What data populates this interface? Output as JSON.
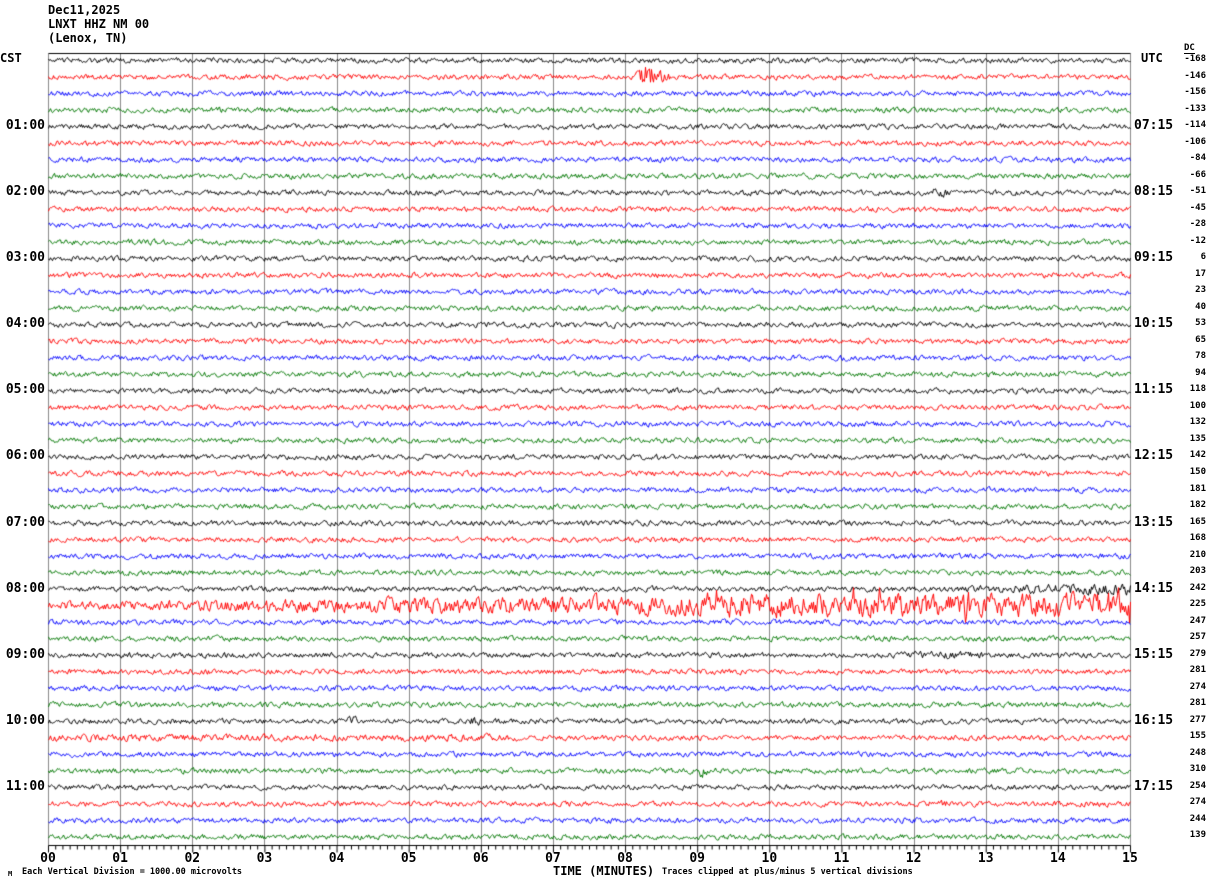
{
  "header": {
    "date": "Dec11,2025",
    "station": "LNXT HHZ NM 00",
    "location": "(Lenox, TN)"
  },
  "axis": {
    "left_header": "CST",
    "right_header": "UTC",
    "dc_header": "DC",
    "x_title": "TIME (MINUTES)",
    "x_ticks": [
      "00",
      "01",
      "02",
      "03",
      "04",
      "05",
      "06",
      "07",
      "08",
      "09",
      "10",
      "11",
      "12",
      "13",
      "14",
      "15"
    ]
  },
  "footer": {
    "left": "Each Vertical Division = 1000.00 microvolts",
    "right": "Traces clipped at plus/minus 5 vertical divisions",
    "corner_mark": "M"
  },
  "colors": {
    "black": "#000000",
    "red": "#ff0000",
    "blue": "#0000ff",
    "green": "#007700",
    "grid": "#888888",
    "axis": "#000000",
    "background": "#ffffff"
  },
  "chart_data": {
    "type": "line",
    "title": "LNXT HHZ NM 00 (Lenox, TN) Dec11,2025 helicorder",
    "xlabel": "TIME (MINUTES)",
    "x_range_minutes": [
      0,
      15
    ],
    "minor_tick_minutes": 0.1,
    "trace_color_cycle": [
      "black",
      "red",
      "blue",
      "green"
    ],
    "clip_note": "Traces clipped at plus/minus 5 vertical divisions",
    "vertical_division_microvolts": 1000.0,
    "rows": [
      {
        "cst": "",
        "utc": "",
        "dc": -168,
        "color": "black"
      },
      {
        "cst": "",
        "utc": "",
        "dc": -146,
        "color": "red",
        "events": [
          {
            "shape": "spike",
            "t0": 8.1,
            "peak": 8.3,
            "t1": 9.5,
            "env": 26,
            "decay": 0.25
          }
        ]
      },
      {
        "cst": "",
        "utc": "",
        "dc": -156,
        "color": "blue"
      },
      {
        "cst": "",
        "utc": "",
        "dc": -133,
        "color": "green"
      },
      {
        "cst": "01:00",
        "utc": "07:15",
        "dc": -114,
        "color": "black"
      },
      {
        "cst": "",
        "utc": "",
        "dc": -106,
        "color": "red"
      },
      {
        "cst": "",
        "utc": "",
        "dc": -84,
        "color": "blue"
      },
      {
        "cst": "",
        "utc": "",
        "dc": -66,
        "color": "green"
      },
      {
        "cst": "02:00",
        "utc": "08:15",
        "dc": -51,
        "color": "black",
        "events": [
          {
            "shape": "flat",
            "t0": 12.25,
            "t1": 12.45,
            "env": 7
          }
        ]
      },
      {
        "cst": "",
        "utc": "",
        "dc": -45,
        "color": "red"
      },
      {
        "cst": "",
        "utc": "",
        "dc": -28,
        "color": "blue"
      },
      {
        "cst": "",
        "utc": "",
        "dc": -12,
        "color": "green"
      },
      {
        "cst": "03:00",
        "utc": "09:15",
        "dc": 6,
        "color": "black"
      },
      {
        "cst": "",
        "utc": "",
        "dc": 17,
        "color": "red"
      },
      {
        "cst": "",
        "utc": "",
        "dc": 23,
        "color": "blue"
      },
      {
        "cst": "",
        "utc": "",
        "dc": 40,
        "color": "green"
      },
      {
        "cst": "04:00",
        "utc": "10:15",
        "dc": 53,
        "color": "black"
      },
      {
        "cst": "",
        "utc": "",
        "dc": 65,
        "color": "red"
      },
      {
        "cst": "",
        "utc": "",
        "dc": 78,
        "color": "blue"
      },
      {
        "cst": "",
        "utc": "",
        "dc": 94,
        "color": "green"
      },
      {
        "cst": "05:00",
        "utc": "11:15",
        "dc": 118,
        "color": "black"
      },
      {
        "cst": "",
        "utc": "",
        "dc": 100,
        "color": "red"
      },
      {
        "cst": "",
        "utc": "",
        "dc": 132,
        "color": "blue"
      },
      {
        "cst": "",
        "utc": "",
        "dc": 135,
        "color": "green"
      },
      {
        "cst": "06:00",
        "utc": "12:15",
        "dc": 142,
        "color": "black"
      },
      {
        "cst": "",
        "utc": "",
        "dc": 150,
        "color": "red"
      },
      {
        "cst": "",
        "utc": "",
        "dc": 181,
        "color": "blue"
      },
      {
        "cst": "",
        "utc": "",
        "dc": 182,
        "color": "green"
      },
      {
        "cst": "07:00",
        "utc": "13:15",
        "dc": 165,
        "color": "black"
      },
      {
        "cst": "",
        "utc": "",
        "dc": 168,
        "color": "red"
      },
      {
        "cst": "",
        "utc": "",
        "dc": 210,
        "color": "blue"
      },
      {
        "cst": "",
        "utc": "",
        "dc": 203,
        "color": "green"
      },
      {
        "cst": "08:00",
        "utc": "14:15",
        "dc": 242,
        "color": "black",
        "events": [
          {
            "shape": "ramp",
            "t0": 12.3,
            "t1": 15,
            "env0": 4,
            "env1": 10
          }
        ]
      },
      {
        "cst": "",
        "utc": "",
        "dc": 225,
        "color": "red",
        "base_env": 6,
        "events": [
          {
            "shape": "ramp",
            "t0": 0,
            "t1": 9,
            "env0": 6,
            "env1": 16
          },
          {
            "shape": "flat",
            "t0": 9,
            "t1": 15,
            "env": 17,
            "spiky": true
          }
        ]
      },
      {
        "cst": "",
        "utc": "",
        "dc": 247,
        "color": "blue"
      },
      {
        "cst": "",
        "utc": "",
        "dc": 257,
        "color": "green"
      },
      {
        "cst": "09:00",
        "utc": "15:15",
        "dc": 279,
        "color": "black",
        "events": [
          {
            "shape": "flat",
            "t0": 11.8,
            "t1": 13,
            "env": 5.5
          }
        ]
      },
      {
        "cst": "",
        "utc": "",
        "dc": 281,
        "color": "red"
      },
      {
        "cst": "",
        "utc": "",
        "dc": 274,
        "color": "blue"
      },
      {
        "cst": "",
        "utc": "",
        "dc": 281,
        "color": "green"
      },
      {
        "cst": "10:00",
        "utc": "16:15",
        "dc": 277,
        "color": "black",
        "events": [
          {
            "shape": "flat",
            "t0": 4.1,
            "t1": 4.35,
            "env": 8
          },
          {
            "shape": "flat",
            "t0": 5.8,
            "t1": 6.0,
            "env": 7
          }
        ]
      },
      {
        "cst": "",
        "utc": "",
        "dc": 155,
        "color": "red",
        "events": [
          {
            "shape": "flat",
            "t0": 0,
            "t1": 6.5,
            "env": 5.5
          }
        ]
      },
      {
        "cst": "",
        "utc": "",
        "dc": 248,
        "color": "blue"
      },
      {
        "cst": "",
        "utc": "",
        "dc": 310,
        "color": "green",
        "events": [
          {
            "shape": "spike",
            "t0": 8.95,
            "peak": 9.05,
            "t1": 9.6,
            "env": 10,
            "decay": 0.3
          }
        ]
      },
      {
        "cst": "11:00",
        "utc": "17:15",
        "dc": 254,
        "color": "black"
      },
      {
        "cst": "",
        "utc": "",
        "dc": 274,
        "color": "red",
        "events": [
          {
            "shape": "flat",
            "t0": 12.2,
            "t1": 12.5,
            "env": 6
          }
        ]
      },
      {
        "cst": "",
        "utc": "",
        "dc": 244,
        "color": "blue"
      },
      {
        "cst": "",
        "utc": "",
        "dc": 139,
        "color": "green"
      }
    ]
  }
}
